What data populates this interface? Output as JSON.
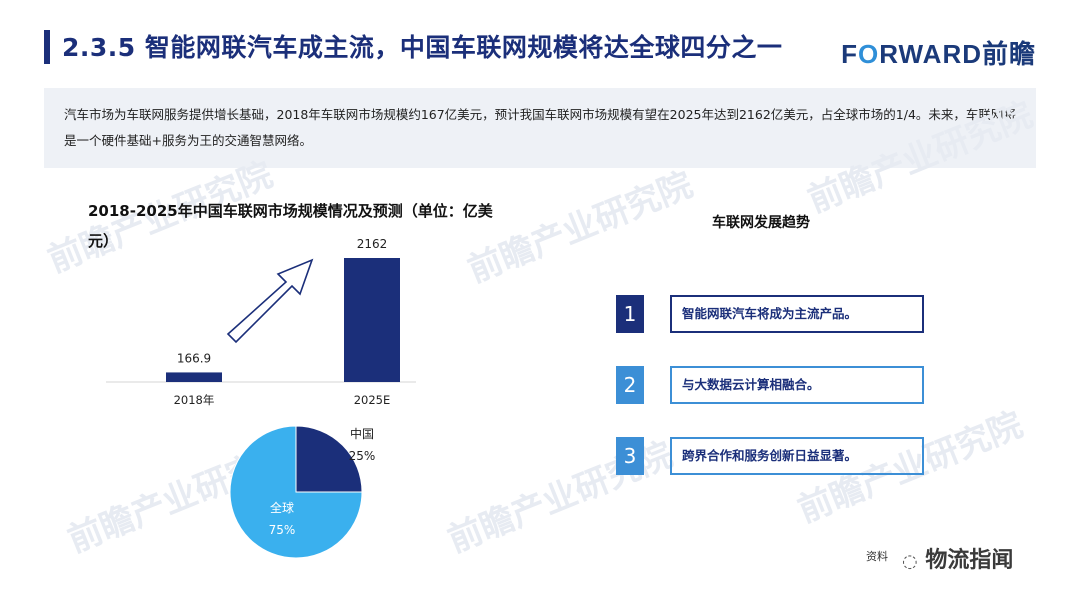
{
  "header": {
    "title": "2.3.5 智能网联汽车成主流，中国车联网规模将达全球四分之一",
    "logo_prefix": "F",
    "logo_o": "O",
    "logo_suffix": "RWARD前瞻"
  },
  "summary": "汽车市场为车联网服务提供增长基础，2018年车联网市场规模约167亿美元，预计我国车联网市场规模有望在2025年达到2162亿美元，占全球市场的1/4。未来，车联网将是一个硬件基础+服务为王的交通智慧网络。",
  "watermark_text": "前瞻产业研究院",
  "chart_data": [
    {
      "type": "bar",
      "title": "2018-2025年中国车联网市场规模情况及预测（单位：亿美元）",
      "categories": [
        "2018年",
        "2025E"
      ],
      "values": [
        166.9,
        2162
      ],
      "value_labels": [
        "166.9",
        "2162"
      ],
      "ylim": [
        0,
        2162
      ],
      "color": "#1b2f7a",
      "grid": false
    },
    {
      "type": "pie",
      "slices": [
        {
          "label": "中国",
          "percent_label": "25%",
          "value": 25,
          "color": "#1b2f7a"
        },
        {
          "label": "全球",
          "percent_label": "75%",
          "value": 75,
          "color": "#3ab0ee"
        }
      ]
    }
  ],
  "trends": {
    "title": "车联网发展趋势",
    "items": [
      {
        "num": "1",
        "text": "智能网联汽车将成为主流产品。"
      },
      {
        "num": "2",
        "text": "与大数据云计算相融合。"
      },
      {
        "num": "3",
        "text": "跨界合作和服务创新日益显著。"
      }
    ]
  },
  "footer": {
    "source_prefix": "资料",
    "wechat_name": "物流指闻"
  }
}
